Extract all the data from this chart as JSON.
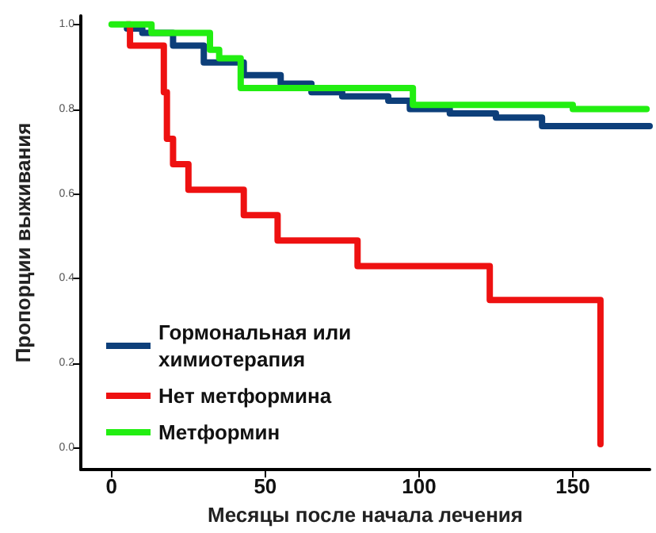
{
  "chart_data": {
    "type": "step",
    "xlabel": "Месяцы после начала лечения",
    "ylabel": "Пропорции выживания",
    "xlim": [
      -10,
      175
    ],
    "xticks": [
      0,
      50,
      100,
      150
    ],
    "ylim": [
      -0.05,
      1.02
    ],
    "yticks": [
      {
        "value": 0,
        "label": "0.0"
      },
      {
        "value": 0.2,
        "label": "0.2"
      },
      {
        "value": 0.4,
        "label": "0.4"
      },
      {
        "value": 0.6,
        "label": "0.6"
      },
      {
        "value": 0.8,
        "label": "0.8"
      },
      {
        "value": 1,
        "label": "1.0"
      }
    ],
    "grid": false,
    "legend": "bottom left",
    "marker": "none",
    "line_style": "solid",
    "series": [
      {
        "name": "Гормональная или\nхимиотерапия",
        "color": "#0d3f7a",
        "x": [
          5,
          10,
          20,
          30,
          43,
          55,
          65,
          75,
          85,
          90,
          97,
          110,
          125,
          140,
          160,
          175
        ],
        "values": [
          0.99,
          0.98,
          0.95,
          0.91,
          0.88,
          0.86,
          0.84,
          0.83,
          0.83,
          0.82,
          0.8,
          0.79,
          0.78,
          0.76,
          0.76,
          0.76
        ]
      },
      {
        "name": "Нет метформина",
        "color": "#ee1111",
        "x": [
          5,
          6,
          13,
          17,
          18,
          20,
          25,
          43,
          54,
          80,
          123,
          159,
          159
        ],
        "values": [
          1,
          0.95,
          0.95,
          0.84,
          0.73,
          0.67,
          0.61,
          0.55,
          0.49,
          0.43,
          0.35,
          0.35,
          0.01
        ]
      },
      {
        "name": "Метформин",
        "color": "#22ee11",
        "x": [
          0,
          13,
          32,
          35,
          42,
          98,
          150,
          174
        ],
        "values": [
          1,
          0.98,
          0.94,
          0.92,
          0.85,
          0.81,
          0.8,
          0.8
        ]
      }
    ]
  }
}
